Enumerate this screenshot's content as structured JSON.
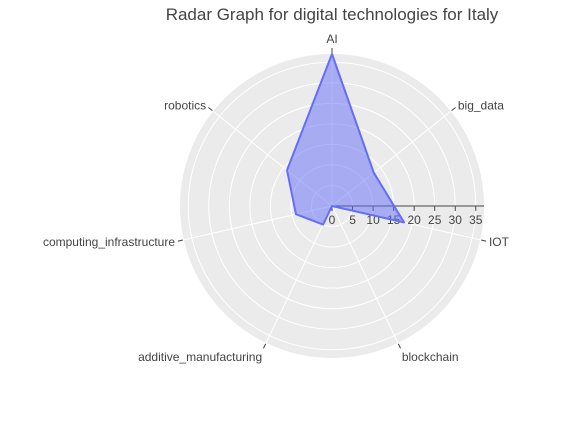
{
  "chart_data": {
    "type": "radar",
    "title": "Radar Graph for digital technologies for Italy",
    "categories": [
      "AI",
      "big_data",
      "IOT",
      "blockchain",
      "additive_manufacturing",
      "computing_infrastructure",
      "robotics"
    ],
    "series": [
      {
        "values": [
          37,
          13,
          18,
          0,
          5,
          9,
          14
        ]
      }
    ],
    "radial_axis": {
      "range": [
        0,
        37
      ],
      "ticks": [
        0,
        5,
        10,
        15,
        20,
        25,
        30,
        35
      ],
      "tick_labels": [
        "0",
        "5",
        "10",
        "15",
        "20",
        "25",
        "30",
        "35"
      ]
    },
    "grid": true,
    "legend": "none"
  },
  "colors": {
    "background": "#ebebeb",
    "grid": "#ffffff",
    "fill": "#a9b1f8",
    "line": "#636efa",
    "text": "#444444"
  }
}
